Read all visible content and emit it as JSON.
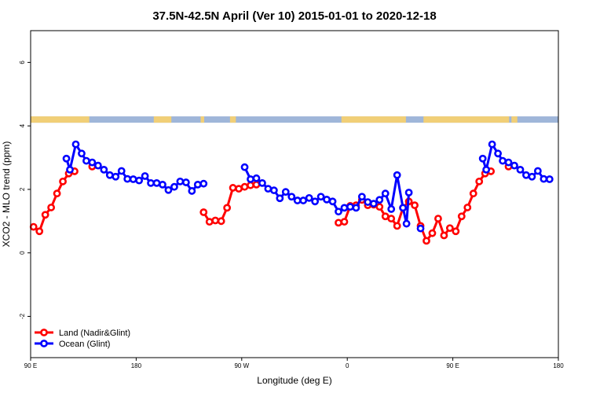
{
  "chart_data": {
    "type": "line",
    "title": "37.5N-42.5N April (Ver 10)   2015-01-01 to 2020-12-18",
    "xlabel": "Longitude (deg E)",
    "ylabel": "XCO2 - MLO trend (ppm)",
    "xlim": [
      90,
      540
    ],
    "ylim": [
      -3.3,
      7.0
    ],
    "x_ticks": [
      {
        "value": 90,
        "label": "90 E"
      },
      {
        "value": 180,
        "label": "180"
      },
      {
        "value": 270,
        "label": "90 W"
      },
      {
        "value": 360,
        "label": "0"
      },
      {
        "value": 450,
        "label": "90 E"
      },
      {
        "value": 540,
        "label": "180"
      }
    ],
    "y_ticks": [
      {
        "value": -2,
        "label": "-2"
      },
      {
        "value": 0,
        "label": "0"
      },
      {
        "value": 2,
        "label": "2"
      },
      {
        "value": 4,
        "label": "4"
      },
      {
        "value": 6,
        "label": "6"
      }
    ],
    "legend_position": "bottom-left",
    "map_strip": {
      "y_from": 4.1,
      "y_to": 4.3,
      "ocean_color": "#9fb6d9",
      "land_color": "#f1cf77"
    },
    "series": [
      {
        "name": "Land (Nadir&Glint)",
        "color": "#ff0000",
        "segments": [
          [
            [
              92.5,
              0.82
            ],
            [
              97.5,
              0.68
            ],
            [
              102.5,
              1.2
            ],
            [
              107.5,
              1.43
            ],
            [
              112.5,
              1.87
            ],
            [
              117.5,
              2.25
            ],
            [
              122.5,
              2.5
            ],
            [
              127.5,
              2.57
            ]
          ],
          [
            [
              142.5,
              2.72
            ]
          ],
          [
            [
              237.5,
              1.28
            ],
            [
              242.5,
              0.98
            ],
            [
              247.5,
              1.02
            ],
            [
              252.5,
              1.0
            ],
            [
              257.5,
              1.42
            ],
            [
              262.5,
              2.05
            ],
            [
              267.5,
              2.02
            ],
            [
              272.5,
              2.08
            ],
            [
              277.5,
              2.13
            ],
            [
              282.5,
              2.15
            ]
          ],
          [
            [
              352.5,
              0.95
            ],
            [
              357.5,
              0.98
            ],
            [
              362.5,
              1.48
            ],
            [
              367.5,
              1.5
            ],
            [
              372.5,
              1.67
            ],
            [
              377.5,
              1.5
            ],
            [
              382.5,
              1.52
            ],
            [
              387.5,
              1.45
            ],
            [
              392.5,
              1.15
            ],
            [
              397.5,
              1.08
            ],
            [
              402.5,
              0.85
            ],
            [
              407.5,
              1.42
            ],
            [
              412.5,
              1.62
            ],
            [
              417.5,
              1.5
            ],
            [
              422.5,
              0.85
            ],
            [
              427.5,
              0.38
            ],
            [
              432.5,
              0.62
            ],
            [
              437.5,
              1.08
            ],
            [
              442.5,
              0.55
            ],
            [
              447.5,
              0.78
            ],
            [
              452.5,
              0.68
            ],
            [
              457.5,
              1.15
            ],
            [
              462.5,
              1.43
            ],
            [
              467.5,
              1.87
            ],
            [
              472.5,
              2.25
            ],
            [
              477.5,
              2.5
            ],
            [
              482.5,
              2.57
            ]
          ],
          [
            [
              497.5,
              2.72
            ]
          ]
        ]
      },
      {
        "name": "Ocean (Glint)",
        "color": "#0000ff",
        "segments": [
          [
            [
              120.5,
              2.97
            ],
            [
              123.5,
              2.62
            ],
            [
              128.5,
              3.42
            ],
            [
              133.5,
              3.13
            ],
            [
              137.5,
              2.9
            ],
            [
              142.5,
              2.85
            ],
            [
              147.5,
              2.75
            ],
            [
              152.5,
              2.62
            ],
            [
              157.5,
              2.45
            ],
            [
              162.5,
              2.4
            ],
            [
              167.5,
              2.58
            ],
            [
              172.5,
              2.33
            ],
            [
              177.5,
              2.32
            ],
            [
              182.5,
              2.28
            ],
            [
              187.5,
              2.42
            ],
            [
              192.5,
              2.2
            ],
            [
              197.5,
              2.2
            ],
            [
              202.5,
              2.15
            ],
            [
              207.5,
              1.98
            ],
            [
              212.5,
              2.08
            ],
            [
              217.5,
              2.25
            ],
            [
              222.5,
              2.22
            ],
            [
              227.5,
              1.95
            ],
            [
              232.5,
              2.15
            ],
            [
              237.5,
              2.18
            ]
          ],
          [
            [
              272.5,
              2.7
            ],
            [
              277.5,
              2.32
            ],
            [
              282.5,
              2.35
            ],
            [
              287.5,
              2.2
            ],
            [
              292.5,
              2.02
            ],
            [
              297.5,
              1.97
            ],
            [
              302.5,
              1.72
            ],
            [
              307.5,
              1.92
            ],
            [
              312.5,
              1.77
            ],
            [
              317.5,
              1.65
            ],
            [
              322.5,
              1.65
            ],
            [
              327.5,
              1.73
            ],
            [
              332.5,
              1.62
            ],
            [
              337.5,
              1.77
            ],
            [
              342.5,
              1.68
            ],
            [
              347.5,
              1.62
            ],
            [
              352.5,
              1.3
            ],
            [
              357.5,
              1.42
            ],
            [
              362.5,
              1.45
            ],
            [
              367.5,
              1.42
            ],
            [
              372.5,
              1.77
            ],
            [
              377.5,
              1.6
            ],
            [
              382.5,
              1.55
            ],
            [
              387.5,
              1.67
            ],
            [
              392.5,
              1.87
            ],
            [
              397.5,
              1.38
            ],
            [
              402.5,
              2.45
            ],
            [
              407.5,
              1.42
            ],
            [
              410.5,
              0.92
            ],
            [
              412.5,
              1.9
            ]
          ],
          [
            [
              422.5,
              0.77
            ]
          ],
          [
            [
              475.5,
              2.97
            ],
            [
              478.5,
              2.62
            ],
            [
              483.5,
              3.42
            ],
            [
              488.5,
              3.13
            ],
            [
              492.5,
              2.9
            ],
            [
              497.5,
              2.85
            ],
            [
              502.5,
              2.75
            ],
            [
              507.5,
              2.62
            ],
            [
              512.5,
              2.45
            ],
            [
              517.5,
              2.4
            ],
            [
              522.5,
              2.58
            ],
            [
              527.5,
              2.33
            ],
            [
              532.5,
              2.32
            ]
          ]
        ]
      }
    ]
  }
}
